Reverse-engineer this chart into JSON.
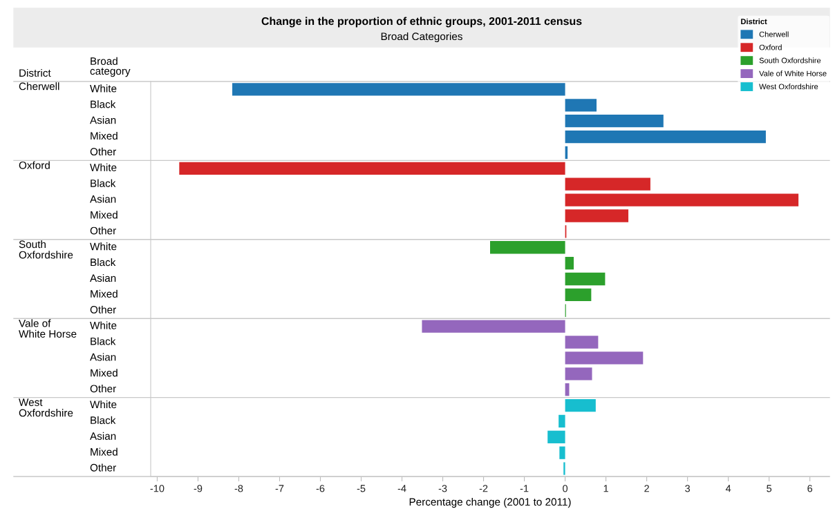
{
  "chart_data": {
    "type": "bar",
    "orientation": "horizontal",
    "title": "Change in the proportion of ethnic groups, 2001-2011 census",
    "subtitle": "Broad Categories",
    "xlabel": "Percentage change (2001 to 2011)",
    "legend_title": "District",
    "legend": "top right",
    "annotations": [
      "District",
      "Broad category"
    ],
    "categories": [
      "White",
      "Black",
      "Asian",
      "Mixed",
      "Other",
      "White",
      "Black",
      "Asian",
      "Mixed",
      "Other",
      "White",
      "Black",
      "Asian",
      "Mixed",
      "Other",
      "White",
      "Black",
      "Asian",
      "Mixed",
      "Other",
      "White",
      "Black",
      "Asian",
      "Mixed",
      "Other"
    ],
    "xlim": [
      -10.16,
      6.48
    ],
    "xticks": [
      -10,
      -9,
      -8,
      -7,
      -6,
      -5,
      -4,
      -3,
      -2,
      -1,
      0,
      1,
      2,
      3,
      4,
      5,
      6
    ],
    "grid": false,
    "series": [
      {
        "name": "Cherwell",
        "color": "#1f77b4",
        "values": [
          -8.16,
          0.77,
          2.41,
          4.92,
          0.06,
          null,
          null,
          null,
          null,
          null,
          null,
          null,
          null,
          null,
          null,
          null,
          null,
          null,
          null,
          null,
          null,
          null,
          null,
          null,
          null
        ]
      },
      {
        "name": "Oxford",
        "color": "#d62728",
        "values": [
          null,
          null,
          null,
          null,
          null,
          -9.46,
          2.09,
          5.72,
          1.55,
          0.03,
          null,
          null,
          null,
          null,
          null,
          null,
          null,
          null,
          null,
          null,
          null,
          null,
          null,
          null,
          null
        ]
      },
      {
        "name": "South Oxfordshire",
        "color": "#2ca02c",
        "values": [
          null,
          null,
          null,
          null,
          null,
          null,
          null,
          null,
          null,
          null,
          -1.84,
          0.21,
          0.98,
          0.64,
          0.02,
          null,
          null,
          null,
          null,
          null,
          null,
          null,
          null,
          null,
          null
        ]
      },
      {
        "name": "Vale of White Horse",
        "color": "#9467bd",
        "values": [
          null,
          null,
          null,
          null,
          null,
          null,
          null,
          null,
          null,
          null,
          null,
          null,
          null,
          null,
          null,
          -3.51,
          0.81,
          1.91,
          0.66,
          0.1,
          null,
          null,
          null,
          null,
          null
        ]
      },
      {
        "name": "West Oxfordshire",
        "color": "#17becf",
        "values": [
          null,
          null,
          null,
          null,
          null,
          null,
          null,
          null,
          null,
          null,
          null,
          null,
          null,
          null,
          null,
          null,
          null,
          null,
          null,
          null,
          0.75,
          -0.16,
          -0.43,
          -0.14,
          -0.04
        ]
      }
    ]
  }
}
